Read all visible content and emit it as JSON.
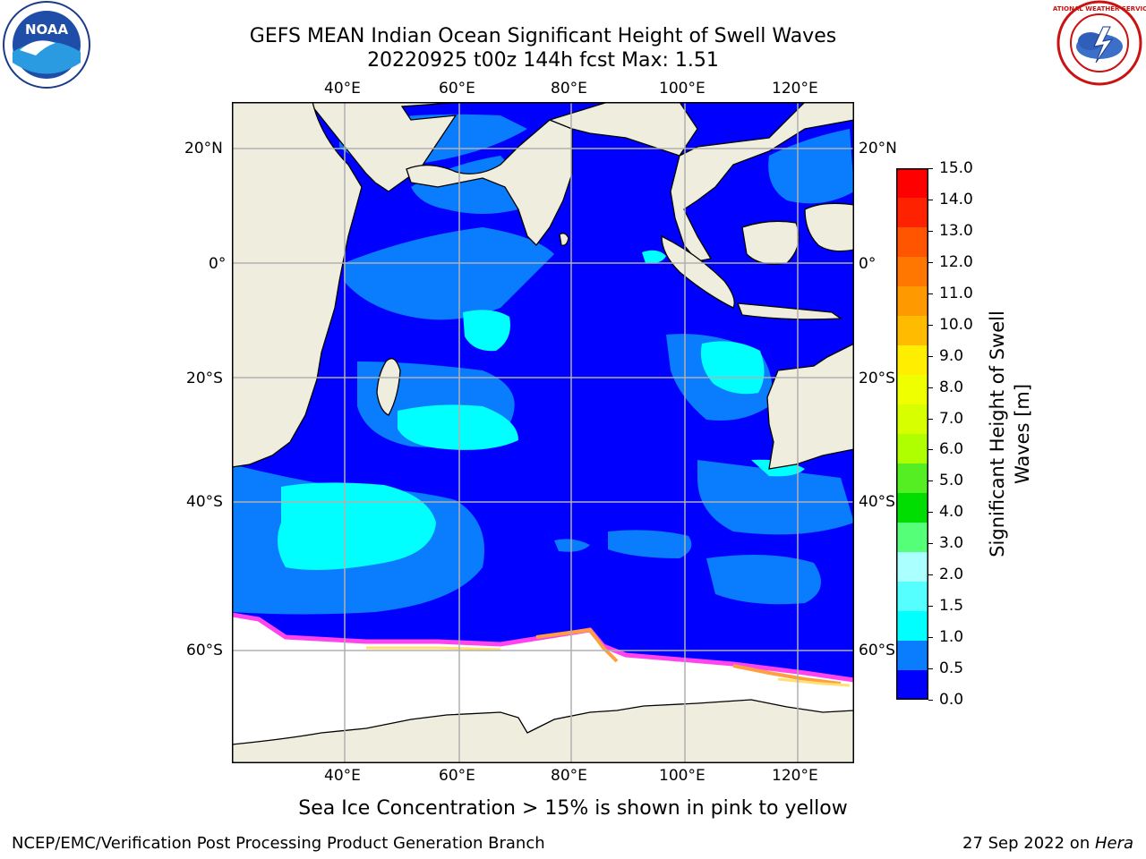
{
  "header": {
    "title_line1": "GEFS MEAN Indian Ocean Significant Height of Swell Waves",
    "title_line2": "20220925 t00z 144h fcst   Max: 1.51"
  },
  "logos": {
    "left": {
      "name": "noaa-logo",
      "text": "NOAA"
    },
    "right": {
      "name": "national-weather-service-logo",
      "text": "NATIONAL WEATHER SERVICE"
    }
  },
  "map": {
    "lon_labels": [
      "40°E",
      "60°E",
      "80°E",
      "100°E",
      "120°E"
    ],
    "lat_labels": [
      "20°N",
      "0°",
      "20°S",
      "40°S",
      "60°S"
    ],
    "colors": {
      "land": "#efedde",
      "ocean_0_0.5": "#0000ff",
      "ocean_0.5_1.0": "#0a7dff",
      "ocean_1.0_1.5": "#00ffff",
      "ice_edge": [
        "#ff44ee",
        "#ffa040",
        "#ffe070"
      ],
      "ice": "#ffffff",
      "grid": "#b0b0b0"
    }
  },
  "colorbar": {
    "labels": [
      "15.0",
      "14.0",
      "13.0",
      "12.0",
      "11.0",
      "10.0",
      "9.0",
      "8.0",
      "7.0",
      "6.0",
      "5.0",
      "4.0",
      "3.0",
      "2.0",
      "1.5",
      "1.0",
      "0.5",
      "0.0"
    ],
    "colors_top_to_bottom": [
      "#ff0000",
      "#ff2200",
      "#ff5500",
      "#ff7700",
      "#ff9900",
      "#ffbb00",
      "#ffee00",
      "#f0ff00",
      "#d8ff00",
      "#b0ff00",
      "#55ee22",
      "#00dd00",
      "#55ff77",
      "#aaffff",
      "#55ffff",
      "#00ffff",
      "#0a7dff",
      "#0000ff"
    ],
    "axis_title_line1": "Significant Height of Swell",
    "axis_title_line2": "Waves [m]"
  },
  "caption": "Sea Ice Concentration > 15% is shown in pink to yellow",
  "footer": {
    "left": "NCEP/EMC/Verification Post Processing Product Generation Branch",
    "right_prefix": "27 Sep 2022 on ",
    "right_host": "Hera"
  }
}
